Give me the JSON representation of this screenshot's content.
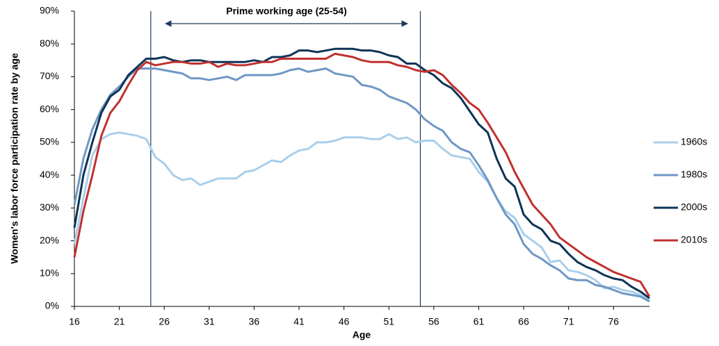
{
  "chart_data": {
    "type": "line",
    "y_label": "Women's labor force participation rate by age",
    "x_label": "Age",
    "annotation": "Prime working age (25-54)",
    "reference_lines": [
      24.5,
      54.5
    ],
    "x": [
      16,
      17,
      18,
      19,
      20,
      21,
      22,
      23,
      24,
      25,
      26,
      27,
      28,
      29,
      30,
      31,
      32,
      33,
      34,
      35,
      36,
      37,
      38,
      39,
      40,
      41,
      42,
      43,
      44,
      45,
      46,
      47,
      48,
      49,
      50,
      51,
      52,
      53,
      54,
      55,
      56,
      57,
      58,
      59,
      60,
      61,
      62,
      63,
      64,
      65,
      66,
      67,
      68,
      69,
      70,
      71,
      72,
      73,
      74,
      75,
      76,
      77,
      78,
      79,
      80
    ],
    "xlim": [
      16,
      80
    ],
    "xticks": [
      16,
      21,
      26,
      31,
      36,
      41,
      46,
      51,
      56,
      61,
      66,
      71,
      76
    ],
    "ylim": [
      0,
      90
    ],
    "yticks": [
      {
        "value": 0,
        "label": "0%"
      },
      {
        "value": 10,
        "label": "10%"
      },
      {
        "value": 20,
        "label": "20%"
      },
      {
        "value": 30,
        "label": "30%"
      },
      {
        "value": 40,
        "label": "40%"
      },
      {
        "value": 50,
        "label": "50%"
      },
      {
        "value": 60,
        "label": "60%"
      },
      {
        "value": 70,
        "label": "70%"
      },
      {
        "value": 80,
        "label": "80%"
      },
      {
        "value": 90,
        "label": "90%"
      }
    ],
    "legend": "right",
    "series": [
      {
        "name": "1960s",
        "color": "#a9cfeb",
        "values": [
          19,
          33,
          46,
          51,
          52.5,
          53,
          52.5,
          52,
          51,
          45.5,
          43.5,
          40,
          38.5,
          39,
          37,
          38,
          39,
          39,
          39,
          41,
          41.5,
          43,
          44.5,
          44,
          46,
          47.5,
          48,
          50,
          50,
          50.5,
          51.5,
          51.5,
          51.5,
          51,
          51,
          52.5,
          51,
          51.5,
          50,
          50.5,
          50.5,
          48,
          46,
          45.5,
          45,
          41,
          38,
          33,
          29,
          27,
          22,
          20,
          18,
          13.5,
          14,
          11,
          10.5,
          9.5,
          8,
          5.5,
          6,
          5,
          4.5,
          3.5,
          2
        ]
      },
      {
        "name": "1980s",
        "color": "#6e97c4",
        "values": [
          31,
          45,
          54,
          60,
          64.5,
          67,
          70,
          72.5,
          72.5,
          72.5,
          72,
          71.5,
          71,
          69.5,
          69.5,
          69,
          69.5,
          70,
          69,
          70.5,
          70.5,
          70.5,
          70.5,
          71,
          72,
          72.5,
          71.5,
          72,
          72.5,
          71,
          70.5,
          70,
          67.5,
          67,
          66,
          64,
          63,
          62,
          60,
          57,
          55,
          53.5,
          50,
          48,
          47,
          43,
          38.5,
          33,
          28,
          25,
          19,
          16,
          14.5,
          12.5,
          11,
          8.5,
          8,
          8,
          6.5,
          6,
          5,
          4,
          3.5,
          3,
          1.5
        ]
      },
      {
        "name": "2000s",
        "color": "#0d3356",
        "values": [
          24,
          40,
          50,
          59,
          64,
          66,
          70.5,
          73,
          75.5,
          75.5,
          76,
          75,
          74.5,
          75,
          75,
          74.5,
          74.5,
          74.5,
          74.5,
          74.5,
          75,
          74.5,
          76,
          76,
          76.5,
          78,
          78,
          77.5,
          78,
          78.5,
          78.5,
          78.5,
          78,
          78,
          77.5,
          76.5,
          76,
          74,
          74,
          72,
          70.5,
          68,
          66.5,
          63.5,
          59.5,
          55.5,
          53,
          45,
          39,
          36.5,
          28,
          25,
          23.5,
          20,
          19,
          16,
          13.5,
          12,
          11,
          9.5,
          8.5,
          8,
          6,
          4.5,
          2.5
        ]
      },
      {
        "name": "2010s",
        "color": "#c0302e",
        "values": [
          15,
          29,
          40,
          52,
          59,
          62.5,
          67.5,
          72,
          74.5,
          73.5,
          74,
          74.5,
          74.5,
          74,
          74,
          74.5,
          73,
          74,
          73.5,
          73.5,
          74,
          74.5,
          74.5,
          75.5,
          75.5,
          75.5,
          75.5,
          75.5,
          75.5,
          77,
          76.5,
          76,
          75,
          74.5,
          74.5,
          74.5,
          73.5,
          73,
          72,
          71.5,
          72,
          70.5,
          67.5,
          65,
          62,
          60,
          56,
          51.5,
          47,
          41,
          36,
          31,
          28,
          25,
          21,
          19,
          17,
          15,
          13.5,
          12,
          10.5,
          9.5,
          8.5,
          7.5,
          3
        ]
      }
    ]
  }
}
